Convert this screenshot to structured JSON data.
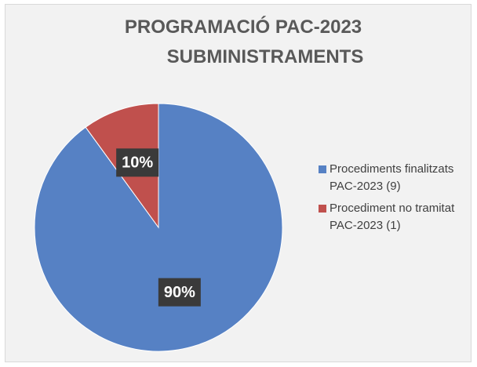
{
  "chart_data": {
    "type": "pie",
    "title": [
      "PROGRAMACIÓ PAC-2023",
      "SUBMINISTRAMENTS"
    ],
    "categories": [
      "Procediments finalitzats PAC-2023 (9)",
      "Procediment no tramitat PAC-2023 (1)"
    ],
    "values": [
      90,
      10
    ],
    "value_labels": [
      "90%",
      "10%"
    ],
    "colors": [
      "#5681c4",
      "#c0504d"
    ],
    "legend": "right"
  }
}
